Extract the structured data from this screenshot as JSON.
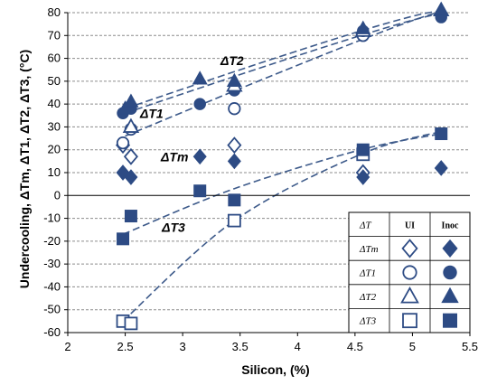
{
  "chart_data": {
    "type": "scatter",
    "title": "",
    "xlabel": "Silicon, (%)",
    "ylabel": "Undercooling, ΔTm, ΔT1, ΔT2, ΔT3, (°C)",
    "xlim": [
      2,
      5.5
    ],
    "ylim": [
      -60,
      80
    ],
    "x_ticks": [
      "2",
      "2.5",
      "3",
      "3.5",
      "4",
      "4.5",
      "5",
      "5.5"
    ],
    "y_ticks": [
      "-60",
      "-50",
      "-40",
      "-30",
      "-20",
      "-10",
      "0",
      "10",
      "20",
      "30",
      "40",
      "50",
      "60",
      "70",
      "80"
    ],
    "grid": "horizontal",
    "legend_position": "bottom-right",
    "legend": {
      "header": "ΔT",
      "col_ui": "UI",
      "col_inoc": "Inoc",
      "rows": [
        "ΔTm",
        "ΔT1",
        "ΔT2",
        "ΔT3"
      ]
    },
    "annotations": [
      {
        "label": "ΔT2",
        "x": 3.43,
        "y": 57
      },
      {
        "label": "ΔT1",
        "x": 2.73,
        "y": 34
      },
      {
        "label": "ΔTm",
        "x": 2.93,
        "y": 15
      },
      {
        "label": "ΔT3",
        "x": 2.92,
        "y": -16
      }
    ],
    "series": [
      {
        "name": "ΔTm UI",
        "marker": "diamond-open",
        "points": [
          [
            2.48,
            22
          ],
          [
            2.55,
            17
          ],
          [
            3.45,
            22
          ],
          [
            4.57,
            10
          ]
        ]
      },
      {
        "name": "ΔTm Inoc",
        "marker": "diamond-filled",
        "points": [
          [
            2.48,
            10
          ],
          [
            2.55,
            8
          ],
          [
            3.15,
            17
          ],
          [
            3.45,
            15
          ],
          [
            4.57,
            8
          ],
          [
            5.25,
            12
          ]
        ]
      },
      {
        "name": "ΔT1 UI",
        "marker": "circle-open",
        "points": [
          [
            2.48,
            23
          ],
          [
            2.55,
            29
          ],
          [
            3.45,
            38
          ],
          [
            4.57,
            70
          ]
        ]
      },
      {
        "name": "ΔT1 Inoc",
        "marker": "circle-filled",
        "points": [
          [
            2.48,
            36
          ],
          [
            2.55,
            38
          ],
          [
            3.15,
            40
          ],
          [
            3.45,
            46
          ],
          [
            4.57,
            72
          ],
          [
            5.25,
            78
          ]
        ]
      },
      {
        "name": "ΔT2 UI",
        "marker": "triangle-open",
        "points": [
          [
            2.55,
            30
          ],
          [
            3.45,
            48
          ],
          [
            4.57,
            72
          ],
          [
            5.25,
            81
          ]
        ]
      },
      {
        "name": "ΔT2 Inoc",
        "marker": "triangle-filled",
        "points": [
          [
            2.5,
            38
          ],
          [
            2.55,
            41
          ],
          [
            3.15,
            51
          ],
          [
            3.45,
            50
          ],
          [
            4.57,
            73
          ],
          [
            5.25,
            81
          ]
        ]
      },
      {
        "name": "ΔT3 UI",
        "marker": "square-open",
        "points": [
          [
            2.48,
            -55
          ],
          [
            2.55,
            -56
          ],
          [
            3.45,
            -11
          ],
          [
            4.57,
            18
          ]
        ]
      },
      {
        "name": "ΔT3 Inoc",
        "marker": "square-filled",
        "points": [
          [
            2.48,
            -19
          ],
          [
            2.55,
            -9
          ],
          [
            3.15,
            2
          ],
          [
            3.45,
            -2
          ],
          [
            4.57,
            20
          ],
          [
            5.25,
            27
          ]
        ]
      }
    ],
    "trend_lines": [
      {
        "name": "ΔT2 trend",
        "points": [
          [
            2.5,
            38
          ],
          [
            4.55,
            72
          ],
          [
            5.25,
            80
          ]
        ]
      },
      {
        "name": "ΔT1 trend upper",
        "points": [
          [
            2.5,
            36
          ],
          [
            4.55,
            70
          ],
          [
            5.25,
            79
          ]
        ]
      },
      {
        "name": "ΔT1 trend lower",
        "points": [
          [
            2.5,
            26
          ],
          [
            4.55,
            68
          ],
          [
            5.25,
            80
          ]
        ]
      },
      {
        "name": "ΔT3 trend upper",
        "points": [
          [
            2.48,
            -17
          ],
          [
            3.45,
            3
          ],
          [
            4.55,
            20
          ],
          [
            5.25,
            27
          ]
        ]
      },
      {
        "name": "ΔT3 trend lower",
        "points": [
          [
            2.48,
            -55
          ],
          [
            3.45,
            -11
          ],
          [
            4.55,
            18
          ],
          [
            5.25,
            28
          ]
        ]
      }
    ]
  }
}
